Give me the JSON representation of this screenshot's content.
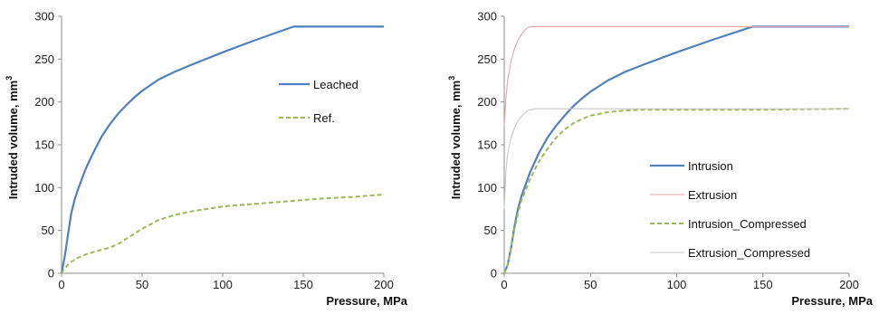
{
  "chart_data": [
    {
      "type": "line",
      "title": "",
      "xlabel": "Pressure, MPa",
      "ylabel": "Intruded volume, mm",
      "ylabel_sup": "3",
      "xlim": [
        0,
        200
      ],
      "ylim": [
        0,
        300
      ],
      "xticks": [
        0,
        50,
        100,
        150,
        200
      ],
      "yticks": [
        0,
        50,
        100,
        150,
        200,
        250,
        300
      ],
      "grid": false,
      "legend_position": "right",
      "series": [
        {
          "name": "Leached",
          "color": "#4f81bd",
          "style": "solid",
          "x": [
            0,
            2,
            4,
            6,
            8,
            10,
            15,
            20,
            25,
            30,
            35,
            40,
            45,
            50,
            60,
            70,
            80,
            100,
            120,
            144,
            150,
            175,
            200
          ],
          "y": [
            0,
            20,
            45,
            70,
            85,
            97,
            122,
            142,
            160,
            174,
            186,
            196,
            205,
            213,
            226,
            235,
            243,
            258,
            272,
            288,
            288,
            288,
            288
          ]
        },
        {
          "name": "Ref.",
          "color": "#9bbb59",
          "style": "dashed",
          "x": [
            0,
            2,
            5,
            10,
            15,
            20,
            30,
            35,
            40,
            45,
            50,
            60,
            70,
            80,
            100,
            120,
            140,
            160,
            180,
            200
          ],
          "y": [
            0,
            6,
            12,
            18,
            22,
            25,
            30,
            34,
            40,
            46,
            52,
            62,
            68,
            72,
            78,
            81,
            84,
            87,
            89,
            92
          ]
        }
      ]
    },
    {
      "type": "line",
      "title": "",
      "xlabel": "Pressure, MPa",
      "ylabel": "Intruded volume, mm",
      "ylabel_sup": "3",
      "xlim": [
        0,
        200
      ],
      "ylim": [
        0,
        300
      ],
      "xticks": [
        0,
        50,
        100,
        150,
        200
      ],
      "yticks": [
        0,
        50,
        100,
        150,
        200,
        250,
        300
      ],
      "grid": false,
      "legend_position": "bottom-right",
      "series": [
        {
          "name": "Intrusion",
          "color": "#4f81bd",
          "style": "solid",
          "x": [
            0,
            2,
            4,
            6,
            8,
            10,
            15,
            20,
            25,
            30,
            35,
            40,
            45,
            50,
            60,
            70,
            80,
            100,
            120,
            144,
            150,
            175,
            200
          ],
          "y": [
            0,
            10,
            30,
            55,
            75,
            90,
            118,
            140,
            158,
            172,
            184,
            195,
            204,
            212,
            225,
            235,
            243,
            258,
            272,
            288,
            288,
            288,
            288
          ]
        },
        {
          "name": "Extrusion",
          "color": "#e6a3a3",
          "style": "solid",
          "x": [
            0,
            1,
            2,
            4,
            6,
            8,
            10,
            12,
            14,
            16,
            17,
            20,
            50,
            100,
            150,
            200
          ],
          "y": [
            172,
            205,
            225,
            248,
            262,
            272,
            279,
            284,
            287,
            288,
            288,
            288,
            288,
            288,
            288,
            288
          ]
        },
        {
          "name": "Intrusion_Compressed",
          "color": "#9bbb59",
          "style": "dashed",
          "x": [
            0,
            2,
            4,
            6,
            8,
            10,
            15,
            20,
            25,
            30,
            35,
            40,
            45,
            50,
            60,
            70,
            80,
            100,
            150,
            200
          ],
          "y": [
            0,
            10,
            30,
            52,
            70,
            85,
            110,
            130,
            145,
            158,
            168,
            175,
            180,
            184,
            188,
            190,
            191,
            191,
            191,
            192
          ]
        },
        {
          "name": "Extrusion_Compressed",
          "color": "#c8c8c8",
          "style": "solid",
          "x": [
            0,
            1,
            2,
            4,
            6,
            8,
            10,
            12,
            14,
            16,
            18,
            20,
            50,
            100,
            150,
            200
          ],
          "y": [
            75,
            120,
            140,
            158,
            170,
            178,
            183,
            187,
            190,
            191,
            192,
            192,
            192,
            192,
            192,
            192
          ]
        }
      ]
    }
  ]
}
